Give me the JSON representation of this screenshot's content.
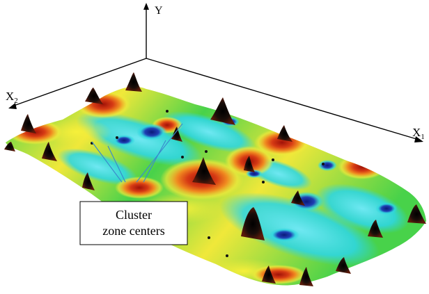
{
  "axes": {
    "y": {
      "label": "Y"
    },
    "x2": {
      "label": "X",
      "subscript": "2"
    },
    "x1": {
      "label": "X",
      "subscript": "1"
    }
  },
  "callout": {
    "line1": "Cluster",
    "line2": "zone centers"
  },
  "colors": {
    "axis": "#000000",
    "pointer": "#3a8ccc",
    "surface_low": "#1f3fb4",
    "surface_mid_low": "#2fd6e0",
    "surface_mid": "#48d24a",
    "surface_mid_high": "#f0e83a",
    "surface_high": "#c41e10",
    "peak": "#1a0e0a"
  }
}
